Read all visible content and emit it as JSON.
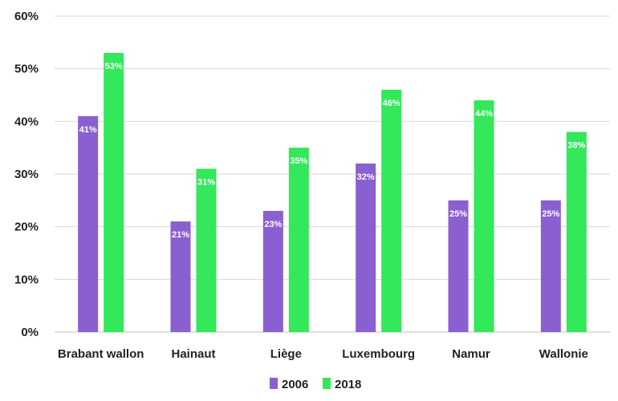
{
  "chart_data": {
    "type": "bar",
    "title": "",
    "xlabel": "",
    "ylabel": "",
    "categories": [
      "Brabant wallon",
      "Hainaut",
      "Liège",
      "Luxembourg",
      "Namur",
      "Wallonie"
    ],
    "series": [
      {
        "name": "2006",
        "color": "#8a5fd0",
        "values": [
          41,
          21,
          23,
          32,
          25,
          25
        ],
        "labels": [
          "41%",
          "21%",
          "23%",
          "32%",
          "25%",
          "25%"
        ]
      },
      {
        "name": "2018",
        "color": "#33e85a",
        "values": [
          53,
          31,
          35,
          46,
          44,
          38
        ],
        "labels": [
          "53%",
          "31%",
          "35%",
          "46%",
          "44%",
          "38%"
        ]
      }
    ],
    "ylim": [
      0,
      60
    ],
    "yticks": [
      0,
      10,
      20,
      30,
      40,
      50,
      60
    ],
    "ytick_labels": [
      "0%",
      "10%",
      "20%",
      "30%",
      "40%",
      "50%",
      "60%"
    ],
    "grid": true,
    "legend_position": "bottom"
  }
}
